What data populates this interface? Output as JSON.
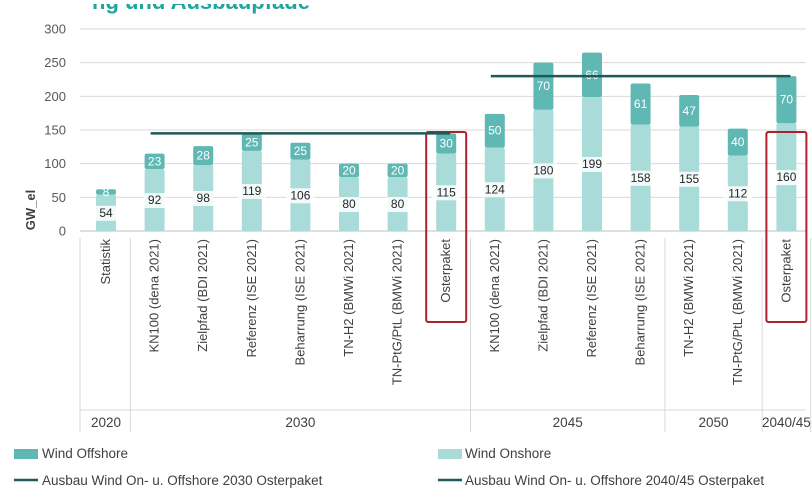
{
  "chart_data": {
    "type": "bar",
    "stacked": true,
    "title": "",
    "ylabel": "GW_el",
    "ylim": [
      0,
      300
    ],
    "yticks": [
      0,
      50,
      100,
      150,
      200,
      250,
      300
    ],
    "categories": [
      "Statistik",
      "KN100 (dena 2021)",
      "Zielpfad (BDI 2021)",
      "Referenz (ISE 2021)",
      "Beharrung (ISE 2021)",
      "TN-H2 (BMWi 2021)",
      "TN-PtG/PtL (BMWi 2021)",
      "Osterpaket",
      "KN100 (dena 2021)",
      "Zielpfad (BDI 2021)",
      "Referenz (ISE 2021)",
      "Beharrung (ISE 2021)",
      "TN-H2 (BMWi 2021)",
      "TN-PtG/PtL (BMWi 2021)",
      "Osterpaket"
    ],
    "groups": [
      {
        "label": "2020",
        "from": 0,
        "to": 0
      },
      {
        "label": "2030",
        "from": 1,
        "to": 7
      },
      {
        "label": "2045",
        "from": 8,
        "to": 11
      },
      {
        "label": "2050",
        "from": 12,
        "to": 13
      },
      {
        "label": "2040/45",
        "from": 14,
        "to": 14
      }
    ],
    "highlighted": [
      7,
      14
    ],
    "series": [
      {
        "name": "Wind Onshore",
        "color": "#a9dcd9",
        "values": [
          54,
          92,
          98,
          119,
          106,
          80,
          80,
          115,
          124,
          180,
          199,
          158,
          155,
          112,
          160
        ]
      },
      {
        "name": "Wind Offshore",
        "color": "#5fb8b3",
        "values": [
          8,
          23,
          28,
          25,
          25,
          20,
          20,
          30,
          50,
          70,
          66,
          61,
          47,
          40,
          70
        ]
      }
    ],
    "lines": [
      {
        "name": "Ausbau Wind On- u. Offshore 2030 Osterpaket",
        "value": 145,
        "from": 1,
        "to": 7,
        "color": "#1e5a57"
      },
      {
        "name": "Ausbau Wind On- u. Offshore 2040/45 Osterpaket",
        "value": 230,
        "from": 8,
        "to": 14,
        "color": "#1e5a57"
      }
    ],
    "legend": {
      "placement": "bottom"
    }
  },
  "colors": {
    "highlight_box": "#b0202a",
    "grid": "#d9d9d9",
    "axis": "#bfbfbf"
  }
}
